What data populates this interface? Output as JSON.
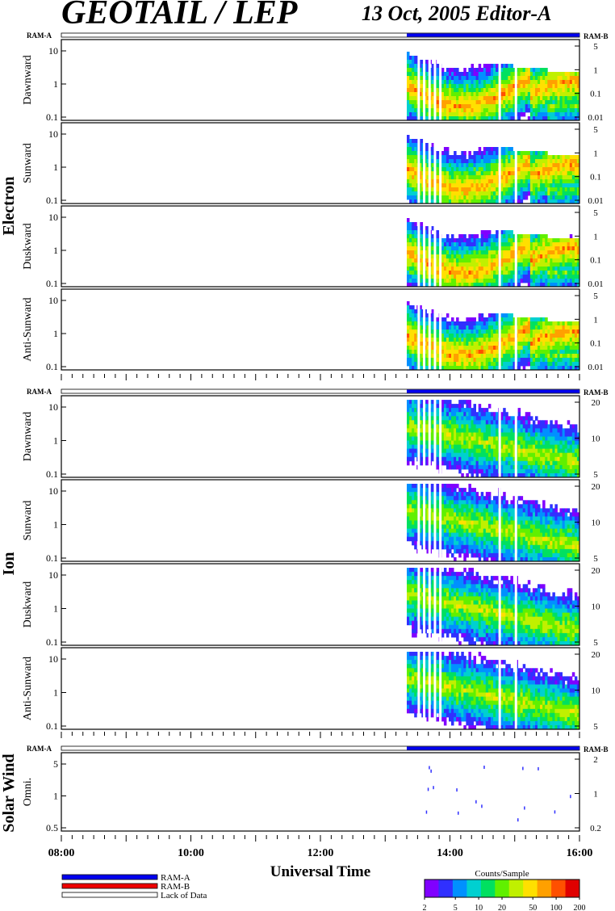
{
  "header": {
    "title": "GEOTAIL / LEP",
    "date_editor": "13 Oct, 2005   Editor-A"
  },
  "labels": {
    "ram_a": "RAM-A",
    "ram_b": "RAM-B",
    "electron": "Electron",
    "ion": "Ion",
    "solar_wind": "Solar Wind",
    "xlabel": "Universal Time",
    "colorbar_title": "Counts/Sample"
  },
  "legend": [
    {
      "label": "RAM-A",
      "color": "#0000ee"
    },
    {
      "label": "RAM-B",
      "color": "#ee0000"
    },
    {
      "label": "Lack of Data",
      "color": "#ffffff"
    }
  ],
  "colors": {
    "ram_a": "#0000ee",
    "ram_b": "#ee0000",
    "colormap": [
      "#ffffff",
      "#8000ff",
      "#3030ff",
      "#0090ff",
      "#00d0d0",
      "#00e060",
      "#60f000",
      "#c0f000",
      "#ffe000",
      "#ffa000",
      "#ff5000",
      "#e00000"
    ]
  },
  "chart_data": {
    "type": "heatmap",
    "x_range": [
      "08:00",
      "16:00"
    ],
    "x_ticks": [
      "08:00",
      "10:00",
      "12:00",
      "14:00",
      "16:00"
    ],
    "data_start": "13:20",
    "data_gaps": [
      "13:30",
      "13:35",
      "13:40",
      "13:45",
      "13:50",
      "14:45",
      "15:00"
    ],
    "panel_groups": [
      {
        "species": "Electron",
        "panels": [
          {
            "name": "Dawnward",
            "left_ticks": [
              "10",
              "1",
              "0.1"
            ],
            "right_ticks": [
              "5",
              "1",
              "0.1",
              "0.01"
            ]
          },
          {
            "name": "Sunward",
            "left_ticks": [
              "10",
              "1",
              "0.1"
            ],
            "right_ticks": [
              "5",
              "1",
              "0.1",
              "0.01"
            ]
          },
          {
            "name": "Duskward",
            "left_ticks": [
              "10",
              "1",
              "0.1"
            ],
            "right_ticks": [
              "5",
              "1",
              "0.1",
              "0.01"
            ]
          },
          {
            "name": "Anti-Sunward",
            "left_ticks": [
              "10",
              "1",
              "0.1"
            ],
            "right_ticks": [
              "5",
              "1",
              "0.1",
              "0.01"
            ]
          }
        ]
      },
      {
        "species": "Ion",
        "panels": [
          {
            "name": "Dawnward",
            "left_ticks": [
              "10",
              "1",
              "0.1"
            ],
            "right_ticks": [
              "20",
              "10",
              "5"
            ]
          },
          {
            "name": "Sunward",
            "left_ticks": [
              "10",
              "1",
              "0.1"
            ],
            "right_ticks": [
              "20",
              "10",
              "5"
            ]
          },
          {
            "name": "Duskward",
            "left_ticks": [
              "10",
              "1",
              "0.1"
            ],
            "right_ticks": [
              "20",
              "10",
              "5"
            ]
          },
          {
            "name": "Anti-Sunward",
            "left_ticks": [
              "10",
              "1",
              "0.1"
            ],
            "right_ticks": [
              "20",
              "10",
              "5"
            ]
          }
        ]
      },
      {
        "species": "Solar Wind",
        "panels": [
          {
            "name": "Omni.",
            "left_ticks": [
              "5",
              "1",
              "0.5"
            ],
            "right_ticks": [
              "2",
              "1",
              "0.2"
            ]
          }
        ]
      }
    ],
    "colorbar": {
      "label": "Counts/Sample",
      "ticks": [
        "2",
        "5",
        "10",
        "20",
        "50",
        "100",
        "200"
      ],
      "scale": "log"
    }
  }
}
